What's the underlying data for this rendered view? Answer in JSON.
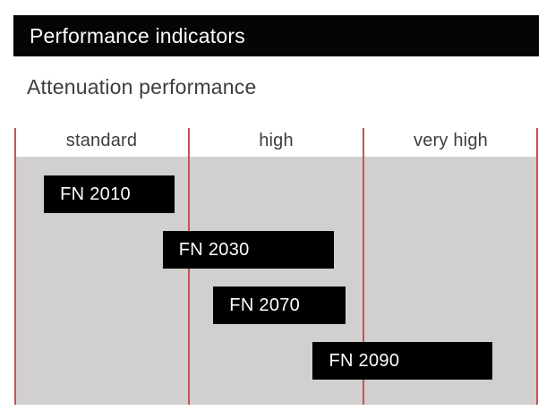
{
  "header": {
    "title": "Performance indicators"
  },
  "section": {
    "subtitle": "Attenuation performance"
  },
  "chart_data": {
    "type": "bar",
    "subtype": "horizontal-range",
    "title": "Attenuation performance",
    "categories": [
      "standard",
      "high",
      "very high"
    ],
    "axis": {
      "min": 0,
      "max": 3,
      "gridlines_at": [
        0,
        1,
        2,
        3
      ]
    },
    "bars": [
      {
        "label": "FN 2010",
        "span": [
          0.17,
          0.92
        ],
        "covers": [
          "standard"
        ]
      },
      {
        "label": "FN 2030",
        "span": [
          0.85,
          1.83
        ],
        "covers": [
          "standard",
          "high"
        ]
      },
      {
        "label": "FN 2070",
        "span": [
          1.14,
          1.9
        ],
        "covers": [
          "high"
        ]
      },
      {
        "label": "FN 2090",
        "span": [
          1.71,
          2.74
        ],
        "covers": [
          "high",
          "very high"
        ]
      }
    ],
    "legend": false,
    "grid": "vertical category separators only",
    "colors": {
      "bar_fill": "#000000",
      "bar_text": "#ffffff",
      "plot_background": "#d1d0ce",
      "gridline": "#c85158",
      "label_text": "#3d3d3d",
      "title_bar_background": "#050505",
      "title_bar_text": "#fefefe"
    }
  }
}
